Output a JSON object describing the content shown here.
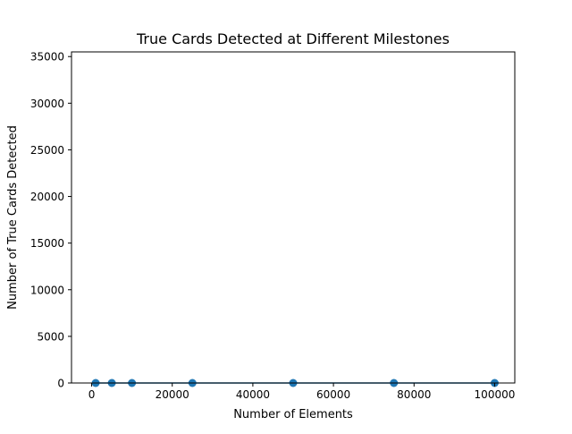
{
  "chart_data": {
    "type": "line",
    "title": "True Cards Detected at Different Milestones",
    "xlabel": "Number of Elements",
    "ylabel": "Number of True Cards Detected",
    "xlim": [
      -5000,
      105000
    ],
    "ylim": [
      0,
      35500
    ],
    "xticks": [
      0,
      20000,
      40000,
      60000,
      80000,
      100000
    ],
    "xtick_labels": [
      "0",
      "20000",
      "40000",
      "60000",
      "80000",
      "100000"
    ],
    "yticks": [
      0,
      5000,
      10000,
      15000,
      20000,
      25000,
      30000,
      35000
    ],
    "ytick_labels": [
      "0",
      "5000",
      "10000",
      "15000",
      "20000",
      "25000",
      "30000",
      "35000"
    ],
    "grid": false,
    "series": [
      {
        "color": "#1f77b4",
        "marker": "circle",
        "x": [
          1000,
          5000,
          10000,
          25000,
          50000,
          75000,
          100000
        ],
        "y": [
          0,
          0,
          0,
          0,
          0,
          0,
          0
        ]
      }
    ]
  }
}
